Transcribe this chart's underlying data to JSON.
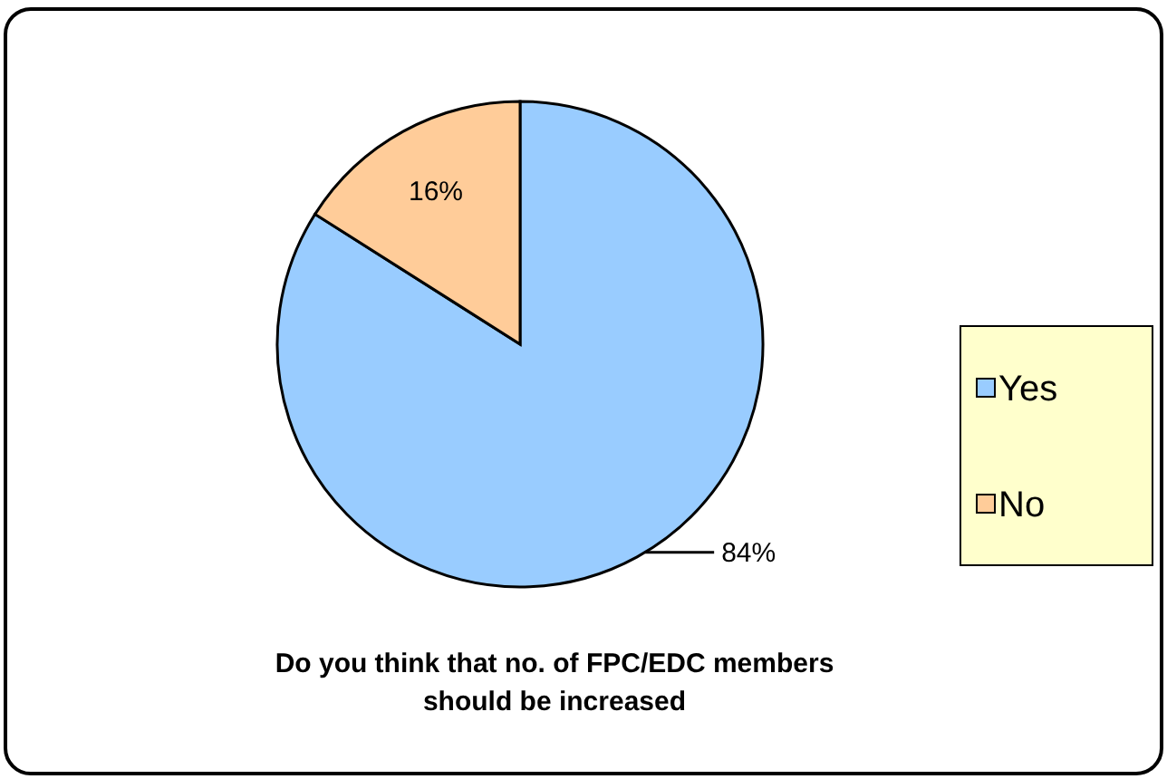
{
  "chart_data": {
    "type": "pie",
    "title": "Do you think that no. of FPC/EDC members should be increased",
    "categories": [
      "Yes",
      "No"
    ],
    "values": [
      84,
      16
    ],
    "colors": [
      "#99ccff",
      "#ffcc99"
    ],
    "value_labels": [
      "84%",
      "16%"
    ],
    "legend": "right"
  }
}
